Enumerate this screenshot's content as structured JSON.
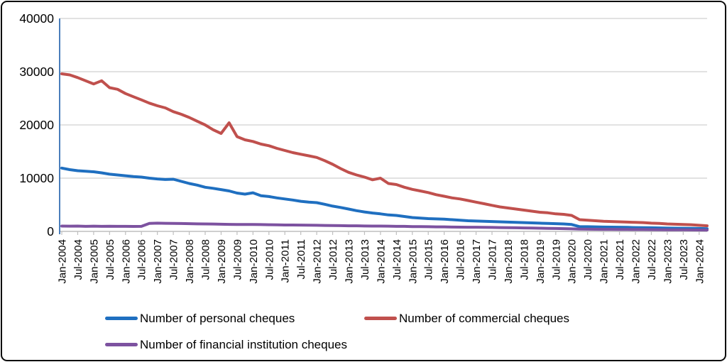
{
  "frame": {
    "background": "#ffffff",
    "border_color": "#0a0a0a"
  },
  "chart_data": {
    "type": "line",
    "title": "",
    "xlabel": "",
    "ylabel": "",
    "ylim": [
      0,
      40000
    ],
    "y_ticks": [
      0,
      10000,
      20000,
      30000,
      40000
    ],
    "grid": "horizontal",
    "legend_position": "bottom",
    "x_start": "Jan-2004",
    "x_end": "Apr-2024",
    "frequency_of_values": "quarterly",
    "x_tick_labels": [
      "Jan-2004",
      "Jul-2004",
      "Jan-2005",
      "Jul-2005",
      "Jan-2006",
      "Jul-2006",
      "Jan-2007",
      "Jul-2007",
      "Jan-2008",
      "Jul-2008",
      "Jan-2009",
      "Jul-2009",
      "Jan-2010",
      "Jul-2010",
      "Jan-2011",
      "Jul-2011",
      "Jan-2012",
      "Jul-2012",
      "Jan-2013",
      "Jul-2013",
      "Jan-2014",
      "Jul-2014",
      "Jan-2015",
      "Jul-2015",
      "Jan-2016",
      "Jul-2016",
      "Jan-2017",
      "Jul-2017",
      "Jan-2018",
      "Jul-2018",
      "Jan-2019",
      "Jul-2019",
      "Jan-2020",
      "Jul-2020",
      "Jan-2021",
      "Jul-2021",
      "Jan-2022",
      "Jul-2022",
      "Jan-2023",
      "Jul-2023",
      "Jan-2024"
    ],
    "colors": {
      "grid": "#d8d8d8",
      "axis": "#bfbfbf",
      "y_axis_line": "#4a7ebb",
      "text": "#000000"
    },
    "series": [
      {
        "name": "Number of personal cheques",
        "color": "#1f6fc0",
        "values": [
          11900,
          11600,
          11400,
          11300,
          11200,
          11000,
          10750,
          10600,
          10450,
          10300,
          10200,
          10000,
          9850,
          9750,
          9800,
          9400,
          9000,
          8700,
          8300,
          8100,
          7850,
          7600,
          7200,
          7000,
          7250,
          6700,
          6550,
          6300,
          6100,
          5900,
          5650,
          5500,
          5400,
          5100,
          4750,
          4500,
          4200,
          3900,
          3650,
          3450,
          3300,
          3100,
          3000,
          2800,
          2600,
          2500,
          2400,
          2350,
          2300,
          2200,
          2100,
          2000,
          1950,
          1900,
          1850,
          1800,
          1750,
          1700,
          1650,
          1600,
          1550,
          1500,
          1450,
          1400,
          1300,
          900,
          880,
          850,
          820,
          800,
          780,
          760,
          720,
          700,
          680,
          660,
          620,
          600,
          580,
          560,
          540,
          510
        ]
      },
      {
        "name": "Number of commercial cheques",
        "color": "#c0504d",
        "values": [
          29600,
          29400,
          28900,
          28300,
          27700,
          28300,
          27000,
          26700,
          25900,
          25300,
          24700,
          24100,
          23600,
          23200,
          22500,
          22000,
          21400,
          20700,
          20000,
          19100,
          18400,
          20400,
          17800,
          17200,
          16900,
          16400,
          16100,
          15600,
          15200,
          14800,
          14500,
          14200,
          13900,
          13300,
          12600,
          11800,
          11100,
          10600,
          10200,
          9700,
          10000,
          9000,
          8800,
          8300,
          7900,
          7600,
          7300,
          6900,
          6600,
          6300,
          6100,
          5800,
          5500,
          5200,
          4900,
          4600,
          4400,
          4200,
          4000,
          3800,
          3600,
          3500,
          3300,
          3200,
          3000,
          2200,
          2100,
          2000,
          1900,
          1850,
          1800,
          1750,
          1700,
          1650,
          1550,
          1500,
          1400,
          1350,
          1300,
          1250,
          1150,
          1050
        ]
      },
      {
        "name": "Number of financial institution cheques",
        "color": "#7d52a0",
        "values": [
          1000,
          980,
          1000,
          950,
          980,
          950,
          970,
          940,
          950,
          930,
          950,
          1500,
          1550,
          1520,
          1500,
          1480,
          1450,
          1420,
          1400,
          1380,
          1350,
          1320,
          1300,
          1300,
          1300,
          1280,
          1250,
          1230,
          1200,
          1200,
          1180,
          1160,
          1150,
          1120,
          1100,
          1080,
          1050,
          1050,
          1020,
          1000,
          1000,
          980,
          950,
          950,
          900,
          900,
          880,
          860,
          850,
          820,
          800,
          780,
          780,
          760,
          740,
          720,
          700,
          680,
          660,
          640,
          600,
          570,
          550,
          520,
          480,
          430,
          420,
          400,
          390,
          380,
          370,
          360,
          350,
          340,
          330,
          320,
          310,
          300,
          290,
          280,
          270,
          250
        ]
      }
    ]
  }
}
